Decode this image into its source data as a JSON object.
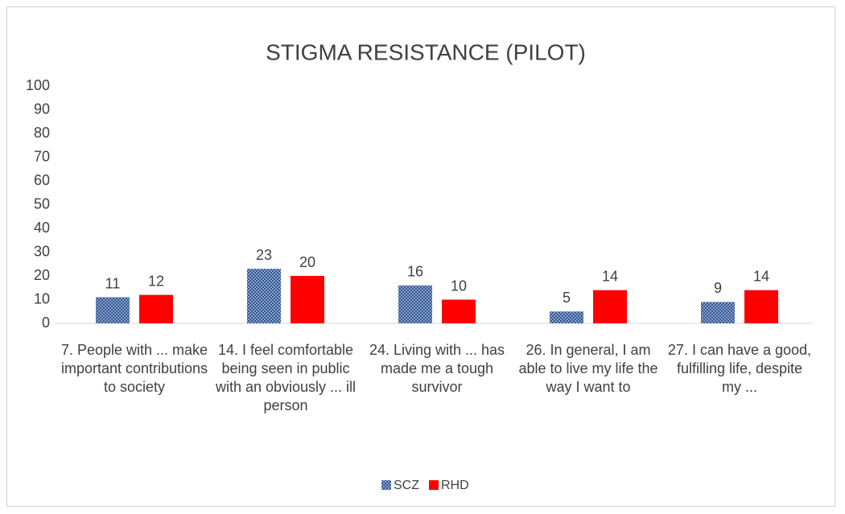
{
  "chart_data": {
    "type": "bar",
    "title": "STIGMA RESISTANCE (PILOT)",
    "categories": [
      "7. People with ... make important contributions to society",
      "14. I feel comfortable being seen in public with an obviously ... ill person",
      "24. Living with ... has made me a tough survivor",
      "26. In general, I am able to live my life the way I want to",
      "27. I can have a good, fulfilling life, despite my ..."
    ],
    "series": [
      {
        "name": "SCZ",
        "color": "#2f5597",
        "pattern": "dots",
        "values": [
          11,
          23,
          16,
          5,
          9
        ]
      },
      {
        "name": "RHD",
        "color": "#ff0000",
        "values": [
          12,
          20,
          10,
          14,
          14
        ]
      }
    ],
    "ylim": [
      0,
      100
    ],
    "yticks": [
      0,
      10,
      20,
      30,
      40,
      50,
      60,
      70,
      80,
      90,
      100
    ],
    "grid": false,
    "legend": "bottom"
  }
}
